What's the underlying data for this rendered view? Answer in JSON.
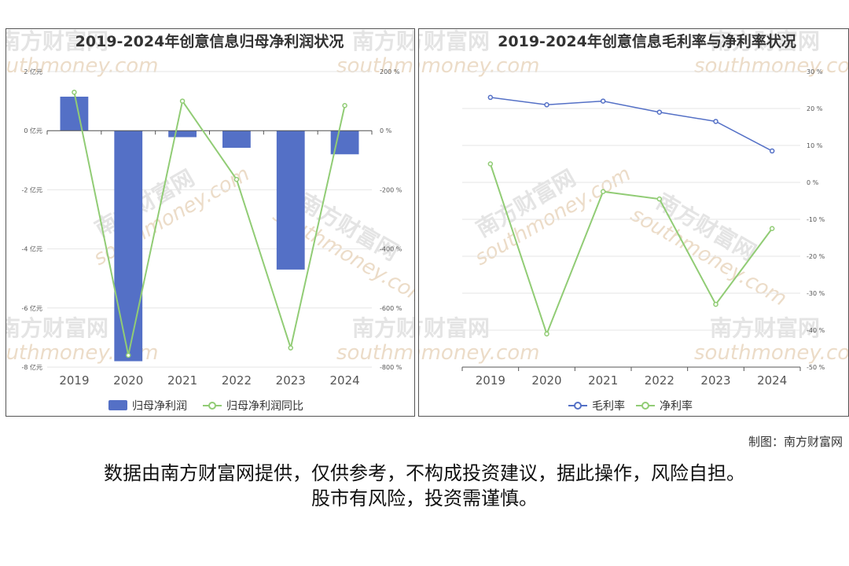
{
  "chart_data": [
    {
      "type": "bar+line",
      "title": "2019-2024年创意信息归母净利润状况",
      "categories": [
        "2019",
        "2020",
        "2021",
        "2022",
        "2023",
        "2024"
      ],
      "series": [
        {
          "name": "归母净利润",
          "type": "bar",
          "axis": "left",
          "unit": "亿元",
          "color": "#5470c6",
          "values": [
            1.15,
            -7.8,
            -0.22,
            -0.58,
            -4.7,
            -0.8
          ]
        },
        {
          "name": "归母净利润同比",
          "type": "line",
          "axis": "right",
          "unit": "%",
          "color": "#91cc75",
          "values": [
            130,
            -760,
            100,
            -165,
            -735,
            85
          ]
        }
      ],
      "y_left": {
        "min": -8,
        "max": 2,
        "ticks": [
          "2 亿元",
          "0 亿元",
          "-2 亿元",
          "-4 亿元",
          "-6 亿元",
          "-8 亿元"
        ]
      },
      "y_right": {
        "min": -800,
        "max": 200,
        "ticks": [
          "200 %",
          "0 %",
          "-200 %",
          "-400 %",
          "-600 %",
          "-800 %"
        ]
      },
      "legend_position": "bottom"
    },
    {
      "type": "line",
      "title": "2019-2024年创意信息毛利率与净利率状况",
      "categories": [
        "2019",
        "2020",
        "2021",
        "2022",
        "2023",
        "2024"
      ],
      "series": [
        {
          "name": "毛利率",
          "color": "#5470c6",
          "values": [
            23,
            21,
            22,
            19,
            16.5,
            8.5
          ]
        },
        {
          "name": "净利率",
          "color": "#91cc75",
          "values": [
            5,
            -41,
            -2.5,
            -4.5,
            -33,
            -12.5
          ]
        }
      ],
      "y_right": {
        "min": -50,
        "max": 30,
        "ticks": [
          "30 %",
          "20 %",
          "10 %",
          "0 %",
          "-10 %",
          "-20 %",
          "-30 %",
          "-40 %",
          "-50 %"
        ]
      },
      "legend_position": "bottom"
    }
  ],
  "watermark": {
    "cn": "南方财富网",
    "en": "southmoney.com"
  },
  "footer": {
    "credit": "制图：南方财富网",
    "line1": "数据由南方财富网提供，仅供参考，不构成投资建议，据此操作，风险自担。",
    "line2": "股市有风险，投资需谨慎。"
  }
}
